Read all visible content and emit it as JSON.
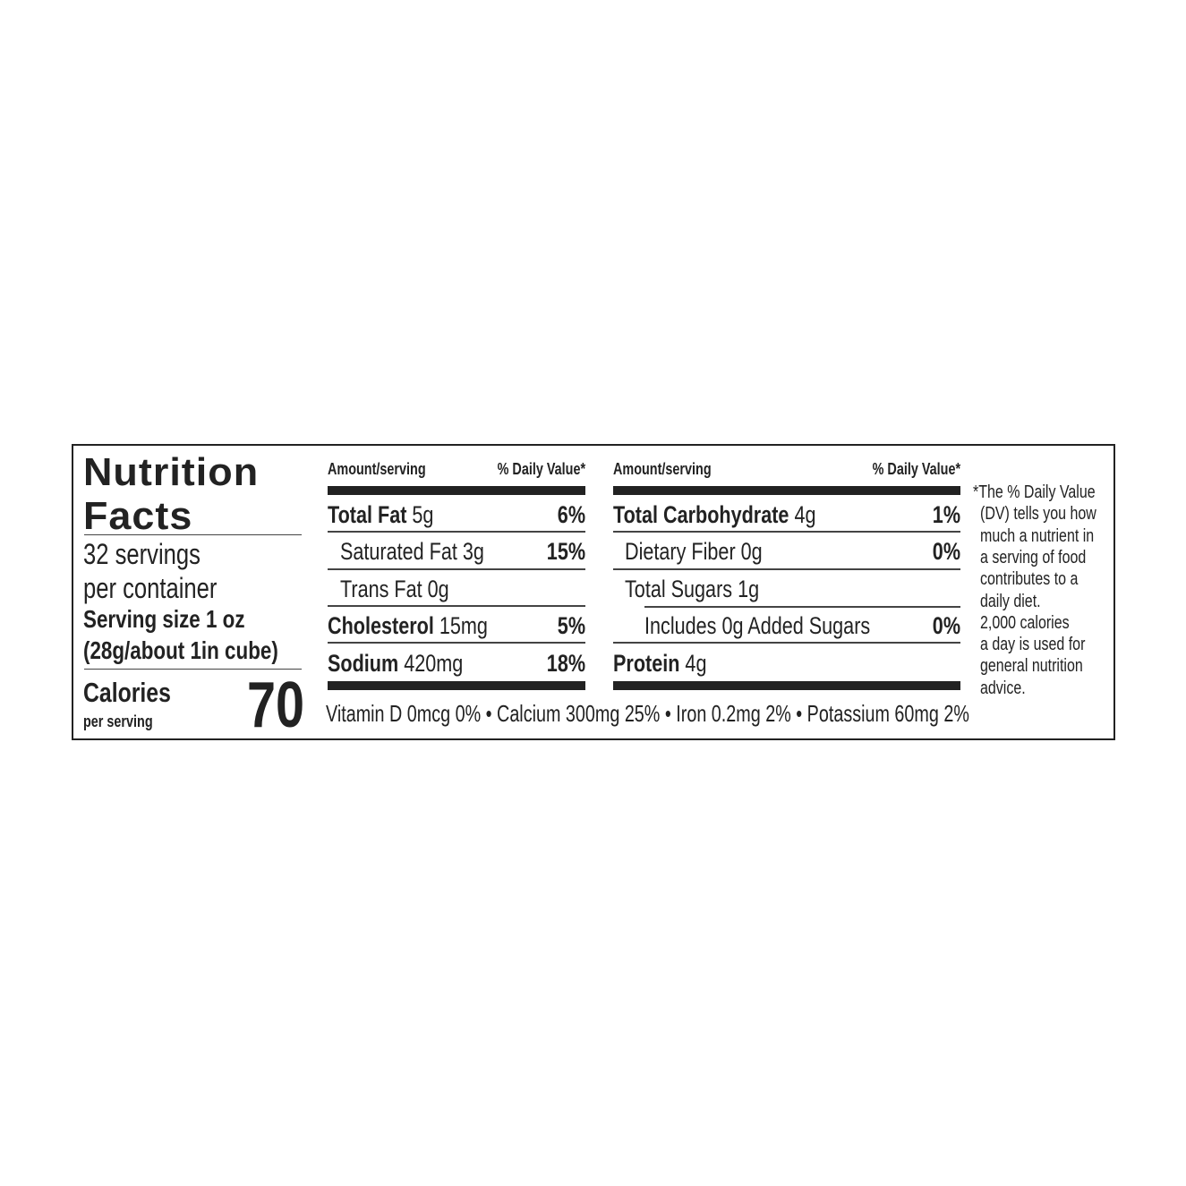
{
  "title_line1": "Nutrition",
  "title_line2": "Facts",
  "servings_line1": "32 servings",
  "servings_line2": "per container",
  "serving_size_line1": "Serving size 1 oz",
  "serving_size_line2": "(28g/about 1in cube)",
  "calories_label": "Calories",
  "calories_sub": "per serving",
  "calories_value": "70",
  "left_table": {
    "header_amount": "Amount/serving",
    "header_dv": "% Daily Value*",
    "rows": [
      {
        "name": "Total Fat",
        "amount": "5g",
        "dv": "6%"
      },
      {
        "name": "Saturated Fat",
        "amount": "3g",
        "dv": "15%"
      },
      {
        "name": "Trans Fat",
        "amount": "0g",
        "dv": ""
      },
      {
        "name": "Cholesterol",
        "amount": "15mg",
        "dv": "5%"
      },
      {
        "name": "Sodium",
        "amount": "420mg",
        "dv": "18%"
      }
    ]
  },
  "right_table": {
    "header_amount": "Amount/serving",
    "header_dv": "% Daily Value*",
    "rows": [
      {
        "name": "Total Carbohydrate",
        "amount": "4g",
        "dv": "1%"
      },
      {
        "name": "Dietary Fiber",
        "amount": "0g",
        "dv": "0%"
      },
      {
        "name": "Total Sugars",
        "amount": "1g",
        "dv": ""
      },
      {
        "name": "Includes 0g Added Sugars",
        "amount": "",
        "dv": "0%"
      },
      {
        "name": "Protein",
        "amount": "4g",
        "dv": ""
      }
    ]
  },
  "micronutrients": "Vitamin D 0mcg 0% • Calcium 300mg 25% • Iron 0.2mg 2% • Potassium 60mg 2%",
  "footnote": [
    "*The % Daily Value",
    "(DV) tells you how",
    "much a nutrient in",
    "a serving of food",
    "contributes to a",
    "daily diet.",
    "2,000 calories",
    "a day is used for",
    "general nutrition",
    "advice."
  ]
}
